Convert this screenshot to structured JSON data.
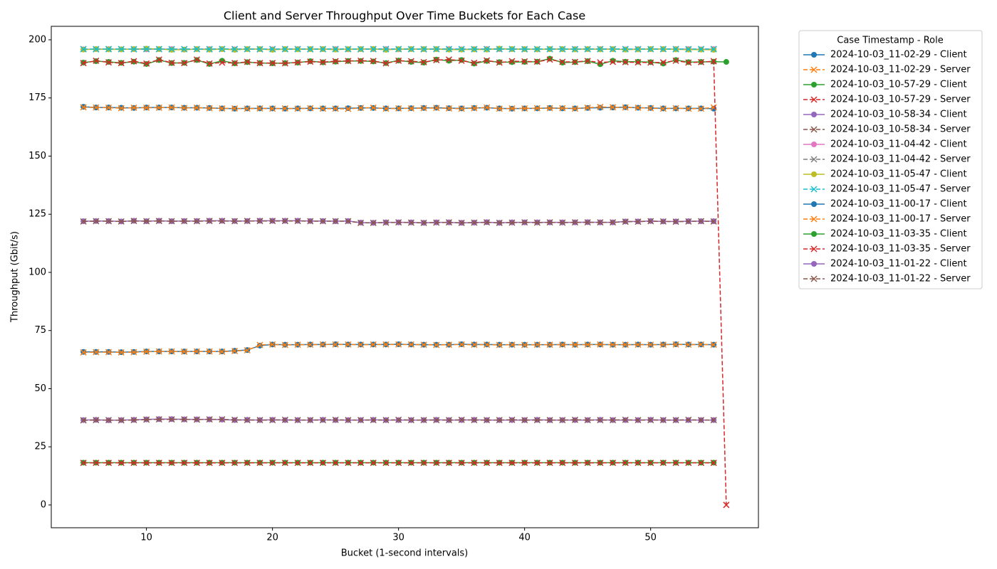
{
  "chart_data": {
    "type": "line",
    "title": "Client and Server Throughput Over Time Buckets for Each Case",
    "x_label": "Bucket (1-second intervals)",
    "y_label": "Throughput (Gbit/s)",
    "legend_title": "Case Timestamp - Role",
    "legend_position": "outside right",
    "grid": false,
    "xlim": [
      2.45,
      58.55
    ],
    "ylim": [
      -9.8,
      205.8
    ],
    "xticks": [
      10,
      20,
      30,
      40,
      50
    ],
    "yticks": [
      0,
      25,
      50,
      75,
      100,
      125,
      150,
      175,
      200
    ],
    "x": [
      5,
      6,
      7,
      8,
      9,
      10,
      11,
      12,
      13,
      14,
      15,
      16,
      17,
      18,
      19,
      20,
      21,
      22,
      23,
      24,
      25,
      26,
      27,
      28,
      29,
      30,
      31,
      32,
      33,
      34,
      35,
      36,
      37,
      38,
      39,
      40,
      41,
      42,
      43,
      44,
      45,
      46,
      47,
      48,
      49,
      50,
      51,
      52,
      53,
      54,
      55,
      56
    ],
    "series": [
      {
        "name": "2024-10-03_11-02-29 - Client",
        "color": "#1f77b4",
        "linestyle": "solid",
        "marker": "o",
        "values": [
          171.2,
          170.9,
          170.9,
          170.8,
          170.7,
          170.9,
          170.9,
          170.9,
          170.8,
          170.8,
          170.7,
          170.5,
          170.4,
          170.5,
          170.5,
          170.5,
          170.4,
          170.5,
          170.5,
          170.5,
          170.5,
          170.6,
          170.7,
          170.7,
          170.5,
          170.5,
          170.6,
          170.7,
          170.8,
          170.6,
          170.5,
          170.7,
          170.8,
          170.5,
          170.4,
          170.5,
          170.5,
          170.7,
          170.5,
          170.5,
          170.7,
          170.8,
          170.9,
          171.0,
          170.8,
          170.7,
          170.5,
          170.5,
          170.5,
          170.5,
          170.4,
          null
        ]
      },
      {
        "name": "2024-10-03_11-02-29 - Server",
        "color": "#ff7f0e",
        "linestyle": "dashed",
        "marker": "x",
        "values": [
          171.0,
          170.9,
          170.8,
          170.6,
          170.8,
          170.8,
          170.8,
          170.9,
          170.7,
          170.8,
          170.6,
          170.5,
          170.5,
          170.4,
          170.5,
          170.4,
          170.5,
          170.4,
          170.6,
          170.4,
          170.4,
          170.3,
          170.7,
          170.8,
          170.4,
          170.5,
          170.5,
          170.6,
          170.7,
          170.5,
          170.4,
          170.6,
          170.9,
          170.4,
          170.5,
          170.5,
          170.6,
          170.6,
          170.6,
          170.4,
          170.8,
          171.1,
          171.0,
          170.9,
          170.8,
          170.6,
          170.4,
          170.6,
          170.4,
          170.4,
          170.9,
          null
        ]
      },
      {
        "name": "2024-10-03_10-57-29 - Client",
        "color": "#2ca02c",
        "linestyle": "solid",
        "marker": "o",
        "values": [
          18.2,
          18.2,
          18.2,
          18.2,
          18.2,
          18.2,
          18.2,
          18.2,
          18.2,
          18.2,
          18.2,
          18.2,
          18.2,
          18.2,
          18.2,
          18.2,
          18.2,
          18.2,
          18.2,
          18.2,
          18.2,
          18.2,
          18.2,
          18.2,
          18.2,
          18.2,
          18.2,
          18.2,
          18.2,
          18.2,
          18.2,
          18.2,
          18.2,
          18.2,
          18.2,
          18.2,
          18.2,
          18.2,
          18.2,
          18.2,
          18.2,
          18.2,
          18.2,
          18.2,
          18.2,
          18.2,
          18.2,
          18.2,
          18.2,
          18.2,
          18.2,
          null
        ]
      },
      {
        "name": "2024-10-03_10-57-29 - Server",
        "color": "#d62728",
        "linestyle": "dashed",
        "marker": "x",
        "values": [
          18.1,
          18.1,
          18.1,
          18.1,
          18.1,
          18.1,
          18.1,
          18.1,
          18.1,
          18.1,
          18.1,
          18.1,
          18.1,
          18.1,
          18.1,
          18.1,
          18.1,
          18.1,
          18.1,
          18.1,
          18.1,
          18.1,
          18.1,
          18.1,
          18.1,
          18.1,
          18.1,
          18.1,
          18.1,
          18.1,
          18.1,
          18.1,
          18.1,
          18.1,
          18.1,
          18.1,
          18.1,
          18.1,
          18.1,
          18.1,
          18.1,
          18.1,
          18.1,
          18.1,
          18.1,
          18.1,
          18.1,
          18.1,
          18.1,
          18.1,
          18.1,
          null
        ]
      },
      {
        "name": "2024-10-03_10-58-34 - Client",
        "color": "#9467bd",
        "linestyle": "solid",
        "marker": "o",
        "values": [
          36.5,
          36.6,
          36.4,
          36.5,
          36.6,
          36.8,
          36.9,
          36.9,
          36.8,
          36.8,
          36.8,
          36.7,
          36.5,
          36.6,
          36.5,
          36.6,
          36.5,
          36.5,
          36.5,
          36.6,
          36.5,
          36.5,
          36.5,
          36.6,
          36.5,
          36.5,
          36.5,
          36.5,
          36.6,
          36.5,
          36.5,
          36.6,
          36.5,
          36.5,
          36.5,
          36.5,
          36.6,
          36.5,
          36.5,
          36.5,
          36.5,
          36.6,
          36.5,
          36.5,
          36.5,
          36.6,
          36.5,
          36.5,
          36.5,
          36.5,
          36.5,
          null
        ]
      },
      {
        "name": "2024-10-03_10-58-34 - Server",
        "color": "#8c564b",
        "linestyle": "dashed",
        "marker": "x",
        "values": [
          36.4,
          36.5,
          36.5,
          36.4,
          36.5,
          36.7,
          36.8,
          36.8,
          36.8,
          36.7,
          36.8,
          36.8,
          36.6,
          36.5,
          36.5,
          36.5,
          36.6,
          36.5,
          36.5,
          36.5,
          36.6,
          36.5,
          36.5,
          36.5,
          36.5,
          36.6,
          36.5,
          36.5,
          36.5,
          36.5,
          36.6,
          36.5,
          36.5,
          36.5,
          36.6,
          36.5,
          36.5,
          36.5,
          36.5,
          36.6,
          36.5,
          36.5,
          36.5,
          36.6,
          36.5,
          36.5,
          36.5,
          36.5,
          36.6,
          36.5,
          36.5,
          null
        ]
      },
      {
        "name": "2024-10-03_11-04-42 - Client",
        "color": "#e377c2",
        "linestyle": "solid",
        "marker": "o",
        "values": [
          195.9,
          196.0,
          196.0,
          195.9,
          196.0,
          195.9,
          196.0,
          196.0,
          195.8,
          196.0,
          196.0,
          196.0,
          195.9,
          196.0,
          196.0,
          195.9,
          196.0,
          196.0,
          196.0,
          196.0,
          196.0,
          195.9,
          196.0,
          196.0,
          196.0,
          195.9,
          196.0,
          196.0,
          196.0,
          196.0,
          195.9,
          196.0,
          196.0,
          196.0,
          196.0,
          196.0,
          195.9,
          196.0,
          196.0,
          196.0,
          196.0,
          196.0,
          196.0,
          195.9,
          196.0,
          196.0,
          196.0,
          196.0,
          196.0,
          195.9,
          196.0,
          null
        ]
      },
      {
        "name": "2024-10-03_11-04-42 - Server",
        "color": "#7f7f7f",
        "linestyle": "dashed",
        "marker": "x",
        "values": [
          196.0,
          195.9,
          196.0,
          196.0,
          195.9,
          196.0,
          196.0,
          195.9,
          196.0,
          196.0,
          195.9,
          196.0,
          196.0,
          196.0,
          195.9,
          196.0,
          196.0,
          196.0,
          195.9,
          196.0,
          196.0,
          196.0,
          195.9,
          196.0,
          196.0,
          196.0,
          196.0,
          195.9,
          196.0,
          196.0,
          196.0,
          195.9,
          196.0,
          196.0,
          196.0,
          195.9,
          196.0,
          196.0,
          196.0,
          195.9,
          196.0,
          196.0,
          196.0,
          196.0,
          195.9,
          196.0,
          196.0,
          196.0,
          195.9,
          196.0,
          196.0,
          null
        ]
      },
      {
        "name": "2024-10-03_11-05-47 - Client",
        "color": "#bcbd22",
        "linestyle": "solid",
        "marker": "o",
        "values": [
          195.8,
          196.0,
          195.9,
          195.9,
          196.0,
          196.2,
          196.0,
          195.7,
          195.8,
          196.0,
          195.8,
          196.0,
          195.7,
          196.0,
          196.0,
          195.7,
          196.0,
          195.9,
          196.0,
          196.0,
          195.8,
          196.0,
          196.0,
          196.1,
          195.7,
          196.0,
          196.0,
          196.0,
          196.0,
          195.8,
          195.8,
          195.9,
          195.8,
          196.2,
          196.0,
          196.0,
          195.9,
          196.0,
          196.0,
          195.9,
          196.0,
          195.9,
          196.0,
          195.8,
          195.9,
          196.0,
          196.0,
          195.9,
          195.8,
          195.8,
          195.7,
          null
        ]
      },
      {
        "name": "2024-10-03_11-05-47 - Server",
        "color": "#17becf",
        "linestyle": "dashed",
        "marker": "x",
        "values": [
          196.0,
          196.0,
          196.0,
          196.0,
          196.0,
          196.0,
          196.0,
          196.0,
          196.0,
          196.0,
          196.0,
          196.1,
          196.0,
          196.0,
          196.0,
          196.0,
          196.0,
          196.0,
          196.0,
          196.0,
          196.0,
          196.0,
          196.0,
          196.0,
          196.0,
          196.0,
          196.0,
          196.0,
          196.0,
          196.0,
          196.0,
          196.0,
          196.0,
          196.0,
          196.0,
          196.0,
          196.0,
          196.0,
          196.0,
          196.0,
          196.0,
          196.0,
          196.0,
          196.0,
          196.0,
          196.0,
          196.0,
          196.0,
          196.0,
          196.0,
          196.0,
          null
        ]
      },
      {
        "name": "2024-10-03_11-00-17 - Client",
        "color": "#1f77b4",
        "linestyle": "solid",
        "marker": "o",
        "values": [
          65.8,
          65.8,
          65.8,
          65.7,
          65.8,
          66.0,
          66.0,
          66.0,
          66.0,
          66.0,
          66.0,
          66.0,
          66.3,
          66.6,
          68.5,
          69.0,
          68.9,
          68.9,
          69.0,
          69.0,
          69.1,
          69.0,
          69.0,
          69.0,
          69.0,
          69.1,
          69.0,
          68.9,
          68.9,
          68.9,
          69.1,
          69.0,
          69.0,
          68.9,
          68.9,
          68.9,
          68.9,
          68.9,
          69.0,
          68.9,
          69.0,
          69.0,
          68.9,
          68.9,
          69.0,
          68.9,
          69.0,
          69.1,
          69.0,
          69.0,
          68.9,
          null
        ]
      },
      {
        "name": "2024-10-03_11-00-17 - Server",
        "color": "#ff7f0e",
        "linestyle": "dashed",
        "marker": "x",
        "values": [
          65.6,
          65.7,
          65.7,
          65.6,
          65.7,
          65.9,
          66.0,
          66.0,
          65.9,
          66.0,
          66.0,
          65.9,
          66.2,
          66.5,
          68.8,
          69.0,
          68.8,
          68.9,
          68.9,
          69.0,
          69.0,
          69.0,
          68.9,
          69.0,
          69.0,
          69.0,
          69.0,
          68.9,
          68.8,
          68.9,
          69.0,
          68.9,
          68.9,
          68.8,
          68.9,
          68.8,
          68.9,
          68.9,
          68.9,
          68.9,
          68.9,
          69.0,
          68.9,
          68.9,
          68.9,
          68.9,
          68.9,
          69.0,
          68.9,
          69.0,
          68.9,
          null
        ]
      },
      {
        "name": "2024-10-03_11-03-35 - Client",
        "color": "#2ca02c",
        "linestyle": "solid",
        "marker": "o",
        "values": [
          190.2,
          190.8,
          190.5,
          190.1,
          190.6,
          189.6,
          191.3,
          190.0,
          190.1,
          191.3,
          189.6,
          191.0,
          189.9,
          190.4,
          190.0,
          189.9,
          190.0,
          190.2,
          190.8,
          190.3,
          190.6,
          190.9,
          190.9,
          190.7,
          190.0,
          191.1,
          190.5,
          190.2,
          191.5,
          191.0,
          191.3,
          189.8,
          190.9,
          190.4,
          190.4,
          190.5,
          190.6,
          191.9,
          190.2,
          190.4,
          190.8,
          189.5,
          191.0,
          190.6,
          190.6,
          190.4,
          189.8,
          191.3,
          190.4,
          190.5,
          190.6,
          190.5
        ]
      },
      {
        "name": "2024-10-03_11-03-35 - Server",
        "color": "#d62728",
        "linestyle": "dashed",
        "marker": "x",
        "values": [
          190.0,
          191.0,
          190.3,
          190.0,
          190.8,
          189.8,
          191.5,
          190.1,
          190.0,
          191.5,
          189.8,
          190.2,
          190.0,
          190.5,
          190.0,
          190.0,
          189.9,
          190.3,
          190.6,
          190.4,
          190.8,
          190.9,
          191.0,
          190.9,
          189.9,
          191.0,
          190.8,
          190.4,
          191.3,
          191.5,
          191.0,
          190.1,
          191.1,
          190.2,
          190.8,
          190.7,
          190.6,
          191.5,
          190.5,
          190.5,
          190.9,
          190.3,
          190.5,
          190.4,
          190.3,
          190.2,
          190.3,
          191.0,
          190.2,
          190.4,
          190.8,
          0
        ]
      },
      {
        "name": "2024-10-03_11-01-22 - Client",
        "color": "#9467bd",
        "linestyle": "solid",
        "marker": "o",
        "values": [
          122.0,
          122.1,
          122.1,
          121.9,
          122.2,
          122.0,
          122.2,
          122.0,
          122.1,
          122.1,
          122.2,
          122.2,
          122.1,
          122.1,
          122.2,
          122.2,
          122.2,
          122.2,
          122.1,
          122.1,
          122.0,
          122.1,
          121.4,
          121.3,
          121.5,
          121.5,
          121.5,
          121.3,
          121.5,
          121.5,
          121.3,
          121.4,
          121.6,
          121.3,
          121.5,
          121.5,
          121.5,
          121.5,
          121.5,
          121.5,
          121.6,
          121.5,
          121.5,
          121.9,
          121.9,
          122.1,
          121.9,
          121.9,
          122.0,
          122.0,
          122.0,
          null
        ]
      },
      {
        "name": "2024-10-03_11-01-22 - Server",
        "color": "#8c564b",
        "linestyle": "dashed",
        "marker": "x",
        "values": [
          121.9,
          122.0,
          122.0,
          121.9,
          122.1,
          122.0,
          122.1,
          122.0,
          122.0,
          122.0,
          122.1,
          122.1,
          122.0,
          122.1,
          122.1,
          122.1,
          122.1,
          122.1,
          122.0,
          122.0,
          122.0,
          122.0,
          121.3,
          121.3,
          121.4,
          121.5,
          121.4,
          121.3,
          121.4,
          121.5,
          121.3,
          121.4,
          121.5,
          121.3,
          121.4,
          121.5,
          121.4,
          121.5,
          121.4,
          121.5,
          121.5,
          121.5,
          121.5,
          121.8,
          121.8,
          122.0,
          121.9,
          121.8,
          121.9,
          122.0,
          121.9,
          null
        ]
      }
    ]
  }
}
